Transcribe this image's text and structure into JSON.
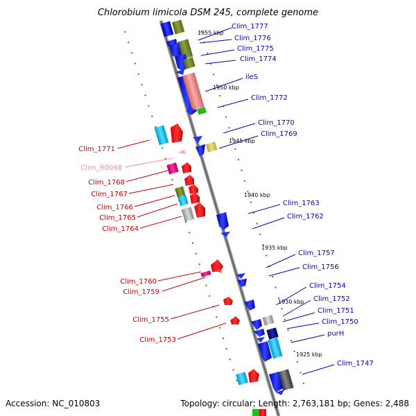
{
  "title": "Chlorobium limicola DSM 245, complete genome",
  "footer": {
    "accession": "Accession: NC_010803",
    "topology": "Topology: circular; Length: 2,763,181 bp; Genes: 2,488"
  },
  "colors": {
    "forward_label": "#0000cc",
    "reverse_label": "#cc0000",
    "rna_label": "#ff88aa",
    "backbone": "#888888",
    "tick": "#228822"
  },
  "kbp_marks": [
    "1955 kbp",
    "1950 kbp",
    "1945 kbp",
    "1940 kbp",
    "1935 kbp",
    "1930 kbp",
    "1925 kbp"
  ],
  "right_labels": [
    "Clim_1777",
    "Clim_1776",
    "Clim_1775",
    "Clim_1774",
    "ileS",
    "Clim_1772",
    "Clim_1770",
    "Clim_1769",
    "Clim_1763",
    "Clim_1762",
    "Clim_1757",
    "Clim_1756",
    "Clim_1754",
    "Clim_1752",
    "Clim_1751",
    "Clim_1750",
    "purH",
    "Clim_1747"
  ],
  "left_labels": [
    "Clim_1771",
    "Clim_R0048",
    "Clim_1768",
    "Clim_1767",
    "Clim_1766",
    "Clim_1765",
    "Clim_1764",
    "Clim_1760",
    "Clim_1759",
    "Clim_1755",
    "Clim_1753"
  ]
}
